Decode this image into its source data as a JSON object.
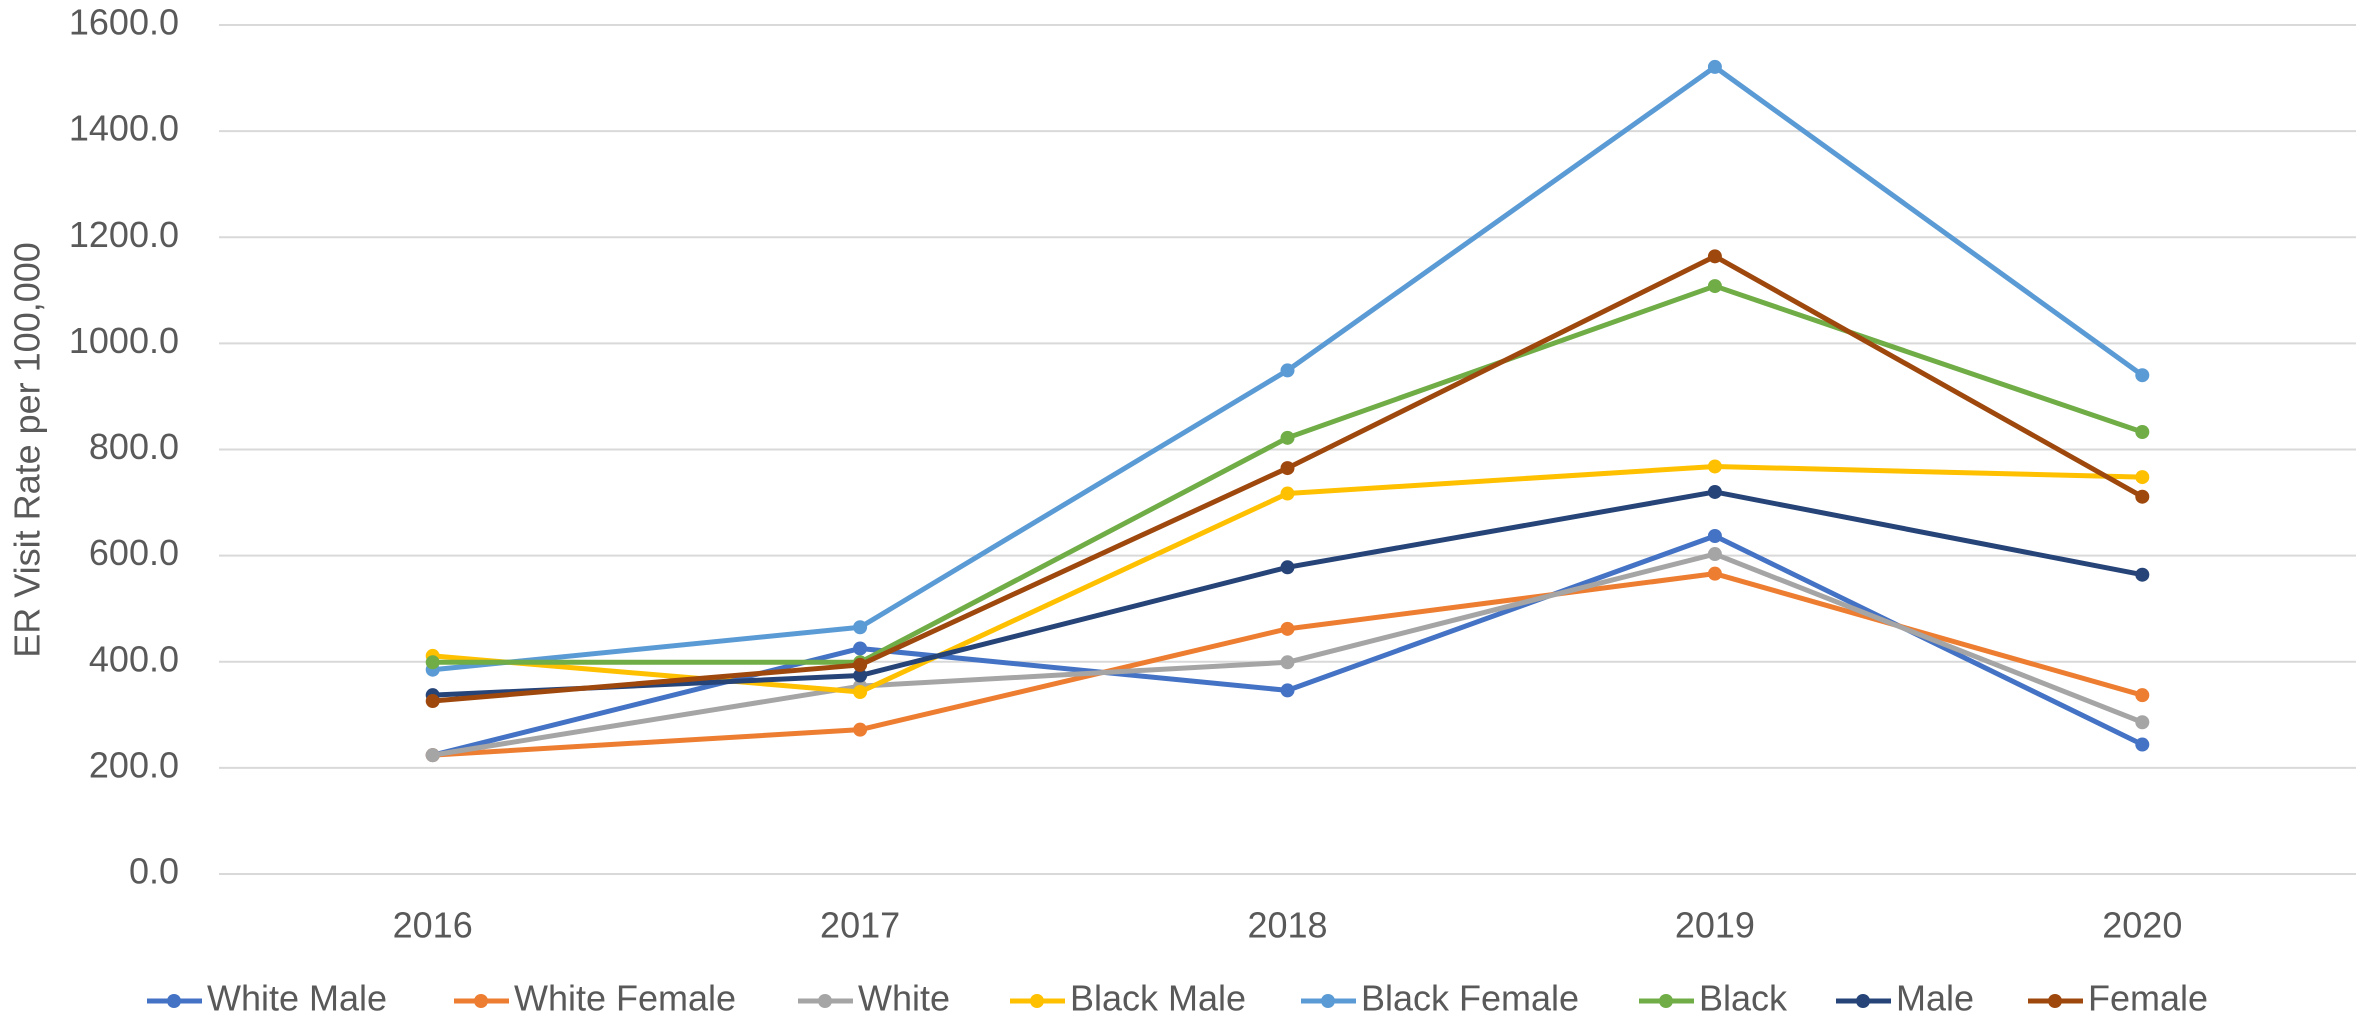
{
  "chart_data": {
    "type": "line",
    "y_label": "ER Visit Rate per 100,000",
    "categories": [
      "2016",
      "2017",
      "2018",
      "2019",
      "2020"
    ],
    "series": [
      {
        "name": "White Male",
        "color": "#4472c4",
        "values": [
          224,
          425,
          346,
          637,
          244
        ]
      },
      {
        "name": "White Female",
        "color": "#ed7d31",
        "values": [
          224,
          272,
          462,
          566,
          337
        ]
      },
      {
        "name": "White",
        "color": "#a5a5a5",
        "values": [
          224,
          354,
          399,
          603,
          286
        ]
      },
      {
        "name": "Black Male",
        "color": "#ffc000",
        "values": [
          411,
          343,
          717,
          768,
          748
        ]
      },
      {
        "name": "Black Female",
        "color": "#5b9bd5",
        "values": [
          385,
          465,
          949,
          1521,
          940
        ]
      },
      {
        "name": "Black",
        "color": "#70ad47",
        "values": [
          399,
          399,
          822,
          1108,
          833
        ]
      },
      {
        "name": "Male",
        "color": "#264478",
        "values": [
          337,
          374,
          578,
          720,
          564
        ]
      },
      {
        "name": "Female",
        "color": "#9e480e",
        "values": [
          326,
          394,
          765,
          1164,
          711
        ]
      }
    ],
    "ylim": [
      0,
      1600
    ],
    "yticks": [
      {
        "value": 0,
        "label": "0.0"
      },
      {
        "value": 200,
        "label": "200.0"
      },
      {
        "value": 400,
        "label": "400.0"
      },
      {
        "value": 600,
        "label": "600.0"
      },
      {
        "value": 800,
        "label": "800.0"
      },
      {
        "value": 1000,
        "label": "1000.0"
      },
      {
        "value": 1200,
        "label": "1200.0"
      },
      {
        "value": 1400,
        "label": "1400.0"
      },
      {
        "value": 1600,
        "label": "1600.0"
      }
    ],
    "grid": true,
    "legend": "bottom"
  }
}
